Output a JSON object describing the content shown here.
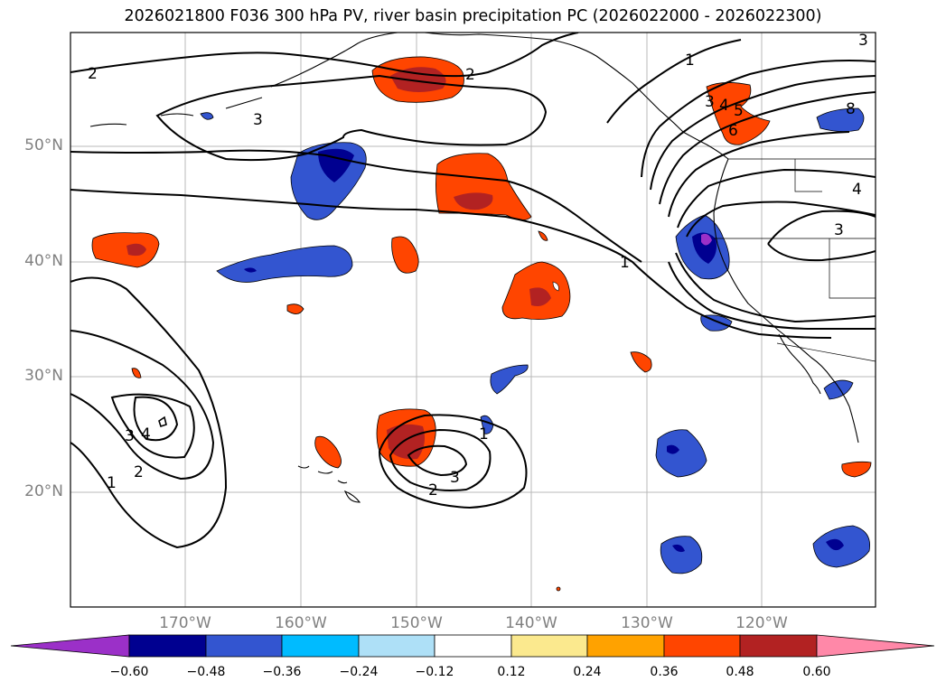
{
  "title": "2026021800 F036 300 hPa PV, river basin precipitation PC (2026022000 - 2026022300)",
  "lat_labels": [
    "50°N",
    "40°N",
    "30°N",
    "20°N"
  ],
  "lon_labels": [
    "170°W",
    "160°W",
    "150°W",
    "140°W",
    "130°W",
    "120°W"
  ],
  "colorbar": {
    "ticks": [
      "−0.60",
      "−0.48",
      "−0.36",
      "−0.24",
      "−0.12",
      "0.12",
      "0.24",
      "0.36",
      "0.48",
      "0.60"
    ],
    "colors": [
      "#9b30c8",
      "#000090",
      "#3355d0",
      "#00bbff",
      "#aee0f7",
      "#ffffff",
      "#fbe98e",
      "#ffa200",
      "#ff4500",
      "#b22222",
      "#ff88a8"
    ]
  },
  "contour_labels": {
    "c2_top_left": "2",
    "c3_top": "3",
    "c2_top_mid": "2",
    "c1_northeast": "1",
    "c3_nw_ak": "3",
    "c4_nw_ak": "4",
    "c5_nw_ak": "5",
    "c6_bc": "6",
    "c8_canada": "8",
    "c4_west_us": "4",
    "c3_west_us": "3",
    "c1_mid_pac": "1",
    "c3_sw_a": "3",
    "c4_sw": "4",
    "c2_sw": "2",
    "c1_sw": "1",
    "c1_hawaii": "1",
    "c3_hawaii": "3",
    "c2_hawaii": "2",
    "c3_top_right": "3"
  }
}
